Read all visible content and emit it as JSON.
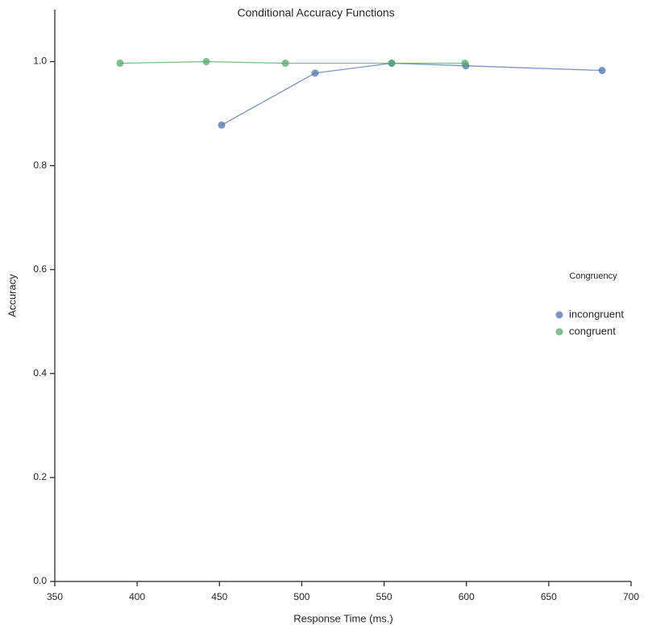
{
  "chart_data": {
    "type": "line",
    "title": "Conditional Accuracy Functions",
    "x_label": "Response Time (ms.)",
    "y_label": "Accuracy",
    "legend_title": "Congruency",
    "legend": "right",
    "series": [
      {
        "name": "incongruent",
        "color": "#4c72b0",
        "x": [
          451.3,
          508.1,
          554.6,
          599.6,
          682.4
        ],
        "values": [
          0.878,
          0.978,
          0.997,
          0.992,
          0.983
        ]
      },
      {
        "name": "congruent",
        "color": "#55a868",
        "x": [
          389.6,
          442,
          490,
          554.6,
          599.1
        ],
        "values": [
          0.997,
          1.0,
          0.997,
          0.997,
          0.997
        ]
      }
    ],
    "xlim": [
      350,
      700
    ],
    "xticks": [
      350,
      400,
      450,
      500,
      550,
      600,
      650,
      700
    ],
    "ylim": [
      0,
      1.1
    ],
    "yticks": [
      {
        "value": 0,
        "label": "0.0"
      },
      0.2,
      0.4,
      0.6,
      0.8,
      {
        "value": 1,
        "label": "1.0"
      }
    ],
    "grid": false
  }
}
